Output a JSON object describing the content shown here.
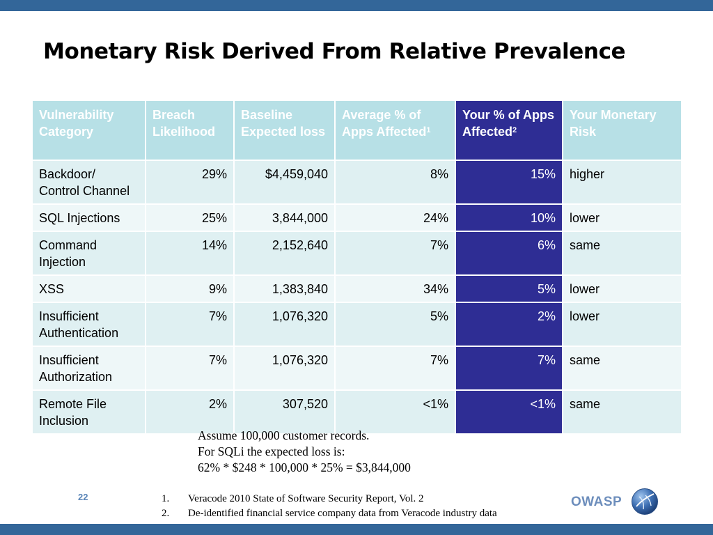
{
  "title": "Monetary Risk Derived From Relative Prevalence",
  "table": {
    "headers": [
      {
        "text": "Vulnerability Category",
        "sup": ""
      },
      {
        "text": "Breach Likelihood",
        "sup": ""
      },
      {
        "text": "Baseline Expected loss",
        "sup": ""
      },
      {
        "text": "Average % of Apps Affected",
        "sup": "1"
      },
      {
        "text": "Your % of Apps Affected",
        "sup": "2"
      },
      {
        "text": "Your Monetary Risk",
        "sup": ""
      }
    ],
    "rows": [
      {
        "category": "Backdoor/ Control Channel",
        "likelihood": "29%",
        "loss": "$4,459,040",
        "avg": "8%",
        "yours": "15%",
        "risk": "higher"
      },
      {
        "category": "SQL Injections",
        "likelihood": "25%",
        "loss": "3,844,000",
        "avg": "24%",
        "yours": "10%",
        "risk": "lower"
      },
      {
        "category": "Command Injection",
        "likelihood": "14%",
        "loss": "2,152,640",
        "avg": "7%",
        "yours": "6%",
        "risk": "same"
      },
      {
        "category": "XSS",
        "likelihood": "9%",
        "loss": "1,383,840",
        "avg": "34%",
        "yours": "5%",
        "risk": "lower"
      },
      {
        "category": "Insufficient Authentication",
        "likelihood": "7%",
        "loss": "1,076,320",
        "avg": "5%",
        "yours": "2%",
        "risk": "lower"
      },
      {
        "category": "Insufficient Authorization",
        "likelihood": "7%",
        "loss": "1,076,320",
        "avg": "7%",
        "yours": "7%",
        "risk": "same"
      },
      {
        "category": "Remote File Inclusion",
        "likelihood": "2%",
        "loss": "307,520",
        "avg": "<1%",
        "yours": "<1%",
        "risk": "same"
      }
    ]
  },
  "notes": {
    "line1": "Assume 100,000 customer records.",
    "line2": "For SQLi the expected loss is:",
    "line3": "62% * $248 * 100,000 * 25% = $3,844,000"
  },
  "page_number": "22",
  "footnotes": [
    {
      "num": "1.",
      "text": "Veracode 2010 State of Software Security Report, Vol. 2"
    },
    {
      "num": "2.",
      "text": "De-identified financial service company data from Veracode industry data"
    }
  ],
  "brand": {
    "name": "OWASP",
    "logo_icon": "owasp-wasp-logo-icon"
  },
  "colors": {
    "bars": "#336699",
    "header_bg": "#b7e0e6",
    "highlight_column": "#2e2d94",
    "higher": "#e00000",
    "lower": "#1aa83a"
  }
}
